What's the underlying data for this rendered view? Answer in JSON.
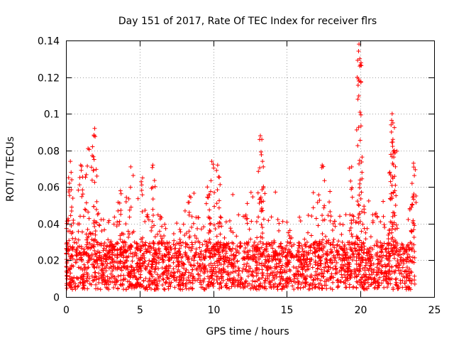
{
  "chart_data": {
    "type": "scatter",
    "title": "Day 151 of 2017, Rate Of TEC Index for receiver flrs",
    "xlabel": "GPS time / hours",
    "ylabel": "ROTI / TECUs",
    "xlim": [
      0,
      25
    ],
    "ylim": [
      0,
      0.14
    ],
    "xticks": [
      "0",
      "5",
      "10",
      "15",
      "20",
      "25"
    ],
    "yticks": [
      "0",
      "0.02",
      "0.04",
      "0.06",
      "0.08",
      "0.1",
      "0.12",
      "0.14"
    ],
    "grid": true,
    "marker": "+",
    "color": "#ff0000",
    "x_range_data": [
      0,
      23.7
    ],
    "background_band": [
      0.004,
      0.03
    ],
    "peaks": [
      {
        "x": 0.3,
        "y": 0.074
      },
      {
        "x": 0.35,
        "y": 0.068
      },
      {
        "x": 1.0,
        "y": 0.072
      },
      {
        "x": 1.5,
        "y": 0.081
      },
      {
        "x": 1.8,
        "y": 0.082
      },
      {
        "x": 1.95,
        "y": 0.092
      },
      {
        "x": 2.1,
        "y": 0.066
      },
      {
        "x": 3.7,
        "y": 0.058
      },
      {
        "x": 4.4,
        "y": 0.071
      },
      {
        "x": 5.2,
        "y": 0.065
      },
      {
        "x": 5.9,
        "y": 0.072
      },
      {
        "x": 8.4,
        "y": 0.055
      },
      {
        "x": 9.6,
        "y": 0.06
      },
      {
        "x": 9.9,
        "y": 0.074
      },
      {
        "x": 10.3,
        "y": 0.072
      },
      {
        "x": 13.2,
        "y": 0.088
      },
      {
        "x": 13.3,
        "y": 0.086
      },
      {
        "x": 13.4,
        "y": 0.071
      },
      {
        "x": 17.4,
        "y": 0.072
      },
      {
        "x": 19.4,
        "y": 0.071
      },
      {
        "x": 19.9,
        "y": 0.138
      },
      {
        "x": 19.95,
        "y": 0.13
      },
      {
        "x": 19.95,
        "y": 0.126
      },
      {
        "x": 19.9,
        "y": 0.118
      },
      {
        "x": 20.1,
        "y": 0.068
      },
      {
        "x": 22.15,
        "y": 0.1
      },
      {
        "x": 22.2,
        "y": 0.095
      },
      {
        "x": 22.1,
        "y": 0.09
      },
      {
        "x": 22.2,
        "y": 0.086
      },
      {
        "x": 22.3,
        "y": 0.08
      },
      {
        "x": 23.6,
        "y": 0.073
      },
      {
        "x": 23.5,
        "y": 0.062
      }
    ]
  }
}
